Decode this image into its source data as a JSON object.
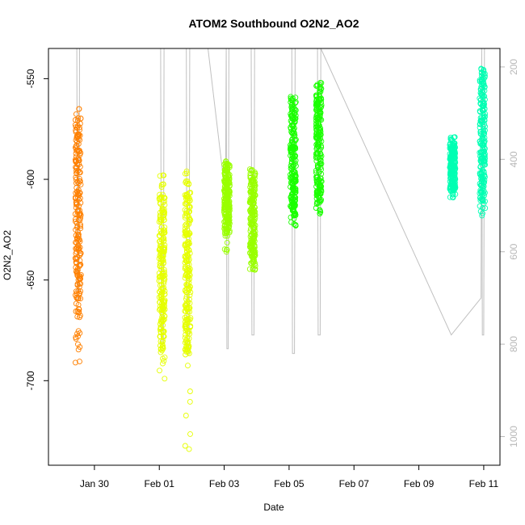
{
  "chart_data": {
    "type": "scatter",
    "title": "ATOM2 Southbound O2N2_AO2",
    "xlabel": "Date",
    "ylabel": "O2N2_AO2",
    "x_ticks": [
      "Jan 30",
      "Feb 01",
      "Feb 03",
      "Feb 05",
      "Feb 07",
      "Feb 09",
      "Feb 11"
    ],
    "xlim": [
      "2017-01-28T14:00",
      "2017-02-11T12:00"
    ],
    "ylim": [
      -742,
      -535
    ],
    "y_ticks": [
      -550,
      -600,
      -650,
      -700
    ],
    "right_axis": {
      "ticks": [
        200,
        400,
        600,
        800,
        1000
      ],
      "lim": [
        1062,
        160
      ],
      "color": "#b8b8b8"
    },
    "grid": false,
    "series": [
      {
        "color": "#ff8000",
        "clusters": [
          {
            "x": "2017-01-29T12:00",
            "ymin": -691,
            "ymax": -565,
            "dense_min": -678,
            "dense_max": -573
          }
        ]
      },
      {
        "color": "#e6ff00",
        "clusters": [
          {
            "x": "2017-02-01T02:00",
            "ymin": -699,
            "ymax": -598,
            "dense_min": -685,
            "dense_max": -608
          },
          {
            "x": "2017-02-01T21:00",
            "ymin": -734,
            "ymax": -596,
            "dense_min": -688,
            "dense_max": -606
          }
        ]
      },
      {
        "color": "#99ff00",
        "clusters": [
          {
            "x": "2017-02-03T02:00",
            "ymin": -636,
            "ymax": -591,
            "dense_min": -627,
            "dense_max": -593
          },
          {
            "x": "2017-02-03T21:00",
            "ymin": -645,
            "ymax": -595,
            "dense_min": -642,
            "dense_max": -598
          }
        ]
      },
      {
        "color": "#1aff00",
        "clusters": [
          {
            "x": "2017-02-05T03:00",
            "ymin": -623,
            "ymax": -559,
            "dense_min": -618,
            "dense_max": -562
          },
          {
            "x": "2017-02-05T22:00",
            "ymin": -617,
            "ymax": -552,
            "dense_min": -612,
            "dense_max": -555
          }
        ]
      },
      {
        "color": "#00ffb3",
        "clusters": [
          {
            "x": "2017-02-10T01:00",
            "ymin": -609,
            "ymax": -579,
            "dense_min": -606,
            "dense_max": -582
          },
          {
            "x": "2017-02-10T23:00",
            "ymin": -618,
            "ymax": -545,
            "dense_min": -611,
            "dense_max": -548
          }
        ]
      }
    ],
    "depth_trace": {
      "color": "#c0c0c0",
      "points": [
        [
          "2017-01-29T11:00",
          160
        ],
        [
          "2017-01-29T11:30",
          700
        ],
        [
          "2017-01-29T12:30",
          700
        ],
        [
          "2017-01-29T13:00",
          160
        ],
        [
          "2017-02-01T01:00",
          160
        ],
        [
          "2017-02-01T01:30",
          800
        ],
        [
          "2017-02-01T03:00",
          800
        ],
        [
          "2017-02-01T03:30",
          160
        ],
        [
          "2017-02-01T20:00",
          160
        ],
        [
          "2017-02-01T20:30",
          820
        ],
        [
          "2017-02-01T22:00",
          820
        ],
        [
          "2017-02-01T22:30",
          160
        ],
        [
          "2017-02-02T12:00",
          160
        ],
        [
          "2017-02-03T01:00",
          480
        ],
        [
          "2017-02-03T01:30",
          160
        ],
        [
          "2017-02-03T02:00",
          810
        ],
        [
          "2017-02-03T03:00",
          810
        ],
        [
          "2017-02-03T03:30",
          160
        ],
        [
          "2017-02-03T20:00",
          160
        ],
        [
          "2017-02-03T20:30",
          780
        ],
        [
          "2017-02-03T22:00",
          780
        ],
        [
          "2017-02-03T22:30",
          160
        ],
        [
          "2017-02-05T02:00",
          160
        ],
        [
          "2017-02-05T02:30",
          820
        ],
        [
          "2017-02-05T04:00",
          820
        ],
        [
          "2017-02-05T04:30",
          160
        ],
        [
          "2017-02-05T21:00",
          160
        ],
        [
          "2017-02-05T21:30",
          780
        ],
        [
          "2017-02-05T23:00",
          780
        ],
        [
          "2017-02-05T23:30",
          160
        ],
        [
          "2017-02-10T00:00",
          780
        ],
        [
          "2017-02-10T22:00",
          700
        ],
        [
          "2017-02-10T22:30",
          160
        ],
        [
          "2017-02-10T23:00",
          780
        ],
        [
          "2017-02-11T00:00",
          780
        ],
        [
          "2017-02-11T00:30",
          160
        ]
      ]
    }
  }
}
